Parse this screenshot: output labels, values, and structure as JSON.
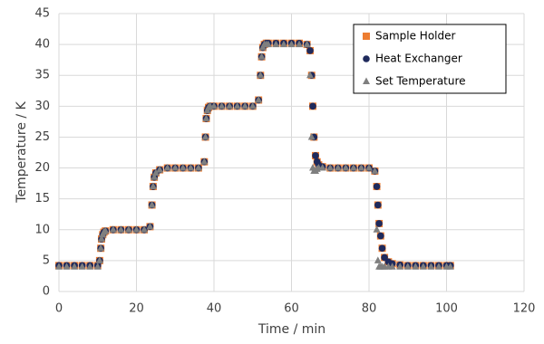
{
  "chart_data": {
    "type": "scatter",
    "x_label": "Time / min",
    "y_label": "Temperature / K",
    "xlim": [
      0,
      120
    ],
    "xticks": [
      0,
      20,
      40,
      60,
      80,
      100,
      120
    ],
    "ylim": [
      0,
      45
    ],
    "yticks": [
      0,
      5,
      10,
      15,
      20,
      25,
      30,
      35,
      40,
      45
    ],
    "grid": true,
    "legend": "top-right",
    "x": [
      0,
      2,
      4,
      6,
      8,
      10,
      10.5,
      10.8,
      11,
      11.3,
      11.6,
      12,
      14,
      16,
      18,
      20,
      22,
      23.5,
      24,
      24.3,
      24.6,
      25,
      26,
      28,
      30,
      32,
      34,
      36,
      37.5,
      37.8,
      38,
      38.3,
      38.6,
      39,
      40,
      42,
      44,
      46,
      48,
      50,
      51.5,
      52,
      52.3,
      52.6,
      53,
      53.5,
      54,
      56,
      58,
      60,
      62,
      64,
      64.8,
      65.2,
      65.5,
      65.8,
      66.2,
      66.6,
      67,
      68,
      70,
      72,
      74,
      76,
      78,
      80,
      81.5,
      82,
      82.3,
      82.6,
      83,
      83.4,
      84,
      85,
      86,
      88,
      90,
      92,
      94,
      96,
      98,
      100,
      101
    ],
    "series": [
      {
        "name": "Sample Holder",
        "color": "#ed7d31",
        "marker": "square",
        "values": [
          4.2,
          4.2,
          4.2,
          4.2,
          4.2,
          4.2,
          5,
          7,
          8.5,
          9.2,
          9.6,
          9.8,
          10,
          10,
          10,
          10,
          10,
          10.5,
          14,
          17,
          18.5,
          19.2,
          19.7,
          20,
          20,
          20,
          20,
          20,
          21,
          25,
          28,
          29.3,
          29.8,
          30,
          30,
          30,
          30,
          30,
          30,
          30,
          31,
          35,
          38,
          39.5,
          40,
          40.2,
          40.2,
          40.2,
          40.2,
          40.2,
          40.2,
          40,
          39,
          35,
          30,
          25,
          22,
          21,
          20.5,
          20.2,
          20,
          20,
          20,
          20,
          20,
          20,
          19.5,
          17,
          14,
          11,
          9,
          7,
          5.5,
          4.8,
          4.5,
          4.3,
          4.2,
          4.2,
          4.2,
          4.2,
          4.2,
          4.2,
          4.2
        ]
      },
      {
        "name": "Heat Exchanger",
        "color": "#1f2a5c",
        "marker": "circle",
        "values": [
          4.2,
          4.2,
          4.2,
          4.2,
          4.2,
          4.2,
          5,
          7,
          8.5,
          9.2,
          9.6,
          9.8,
          10,
          10,
          10,
          10,
          10,
          10.5,
          14,
          17,
          18.5,
          19.2,
          19.7,
          20,
          20,
          20,
          20,
          20,
          21,
          25,
          28,
          29.3,
          29.8,
          30,
          30,
          30,
          30,
          30,
          30,
          30,
          31,
          35,
          38,
          39.5,
          40,
          40.2,
          40.2,
          40.2,
          40.2,
          40.2,
          40.2,
          40,
          39,
          35,
          30,
          25,
          22,
          21,
          20.5,
          20.2,
          20,
          20,
          20,
          20,
          20,
          20,
          19.5,
          17,
          14,
          11,
          9,
          7,
          5.5,
          4.8,
          4.5,
          4.3,
          4.2,
          4.2,
          4.2,
          4.2,
          4.2,
          4.2,
          4.2
        ]
      },
      {
        "name": "Set Temperature",
        "color": "#7f7f7f",
        "marker": "triangle",
        "values": [
          4,
          4,
          4,
          4,
          4,
          4,
          5,
          7,
          8.5,
          9.2,
          9.6,
          9.8,
          10,
          10,
          10,
          10,
          10,
          10.5,
          14,
          17,
          18.5,
          19.2,
          19.7,
          20,
          20,
          20,
          20,
          20,
          21,
          25,
          28,
          29.3,
          29.8,
          30,
          30,
          30,
          30,
          30,
          30,
          30,
          31,
          35,
          38,
          39.5,
          40,
          40,
          40,
          40,
          40,
          40,
          40,
          40,
          35,
          25,
          20,
          19.5,
          19.5,
          19.8,
          20,
          20,
          20,
          20,
          20,
          20,
          20,
          20,
          19.5,
          10,
          5,
          4,
          4,
          4,
          4,
          4,
          4,
          4,
          4,
          4,
          4,
          4,
          4,
          4,
          4
        ]
      }
    ]
  }
}
